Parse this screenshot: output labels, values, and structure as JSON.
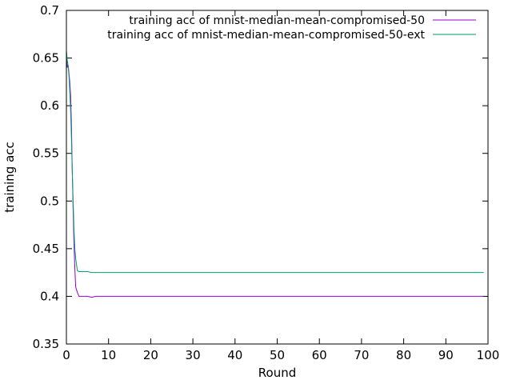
{
  "chart_data": {
    "type": "line",
    "title": "",
    "xlabel": "Round",
    "ylabel": "training acc",
    "xlim": [
      0,
      100
    ],
    "ylim": [
      0.35,
      0.7
    ],
    "xticks": [
      0,
      10,
      20,
      30,
      40,
      50,
      60,
      70,
      80,
      90,
      100
    ],
    "xtick_labels": [
      "0",
      "10",
      "20",
      "30",
      "40",
      "50",
      "60",
      "70",
      "80",
      "90",
      "100"
    ],
    "yticks": [
      0.35,
      0.4,
      0.45,
      0.5,
      0.55,
      0.6,
      0.65,
      0.7
    ],
    "ytick_labels": [
      "0.35",
      "0.4",
      "0.45",
      "0.5",
      "0.55",
      "0.6",
      "0.65",
      "0.7"
    ],
    "grid": false,
    "legend_position": "top-right",
    "series": [
      {
        "name": "training acc of mnist-median-mean-compromised-50",
        "color": "#9400d3",
        "points": [
          [
            0,
            0.653
          ],
          [
            0.2,
            0.64
          ],
          [
            0.4,
            0.643
          ],
          [
            0.6,
            0.635
          ],
          [
            0.8,
            0.625
          ],
          [
            1.0,
            0.61
          ],
          [
            1.2,
            0.58
          ],
          [
            1.4,
            0.53
          ],
          [
            1.6,
            0.49
          ],
          [
            1.8,
            0.455
          ],
          [
            2.0,
            0.43
          ],
          [
            2.2,
            0.41
          ],
          [
            2.6,
            0.404
          ],
          [
            3.0,
            0.4
          ],
          [
            5.0,
            0.4
          ],
          [
            6.0,
            0.399
          ],
          [
            7.0,
            0.4
          ],
          [
            20,
            0.4
          ],
          [
            50,
            0.4
          ],
          [
            80,
            0.4
          ],
          [
            99,
            0.4
          ]
        ]
      },
      {
        "name": "training acc of mnist-median-mean-compromised-50-ext",
        "color": "#009e73",
        "points": [
          [
            0,
            0.658
          ],
          [
            0.2,
            0.648
          ],
          [
            0.4,
            0.642
          ],
          [
            0.6,
            0.632
          ],
          [
            0.8,
            0.615
          ],
          [
            1.0,
            0.595
          ],
          [
            1.2,
            0.565
          ],
          [
            1.4,
            0.53
          ],
          [
            1.6,
            0.5
          ],
          [
            1.8,
            0.47
          ],
          [
            2.0,
            0.45
          ],
          [
            2.2,
            0.44
          ],
          [
            2.6,
            0.427
          ],
          [
            3.0,
            0.426
          ],
          [
            5.0,
            0.426
          ],
          [
            6.0,
            0.425
          ],
          [
            20,
            0.425
          ],
          [
            50,
            0.425
          ],
          [
            80,
            0.425
          ],
          [
            99,
            0.425
          ]
        ]
      }
    ]
  }
}
